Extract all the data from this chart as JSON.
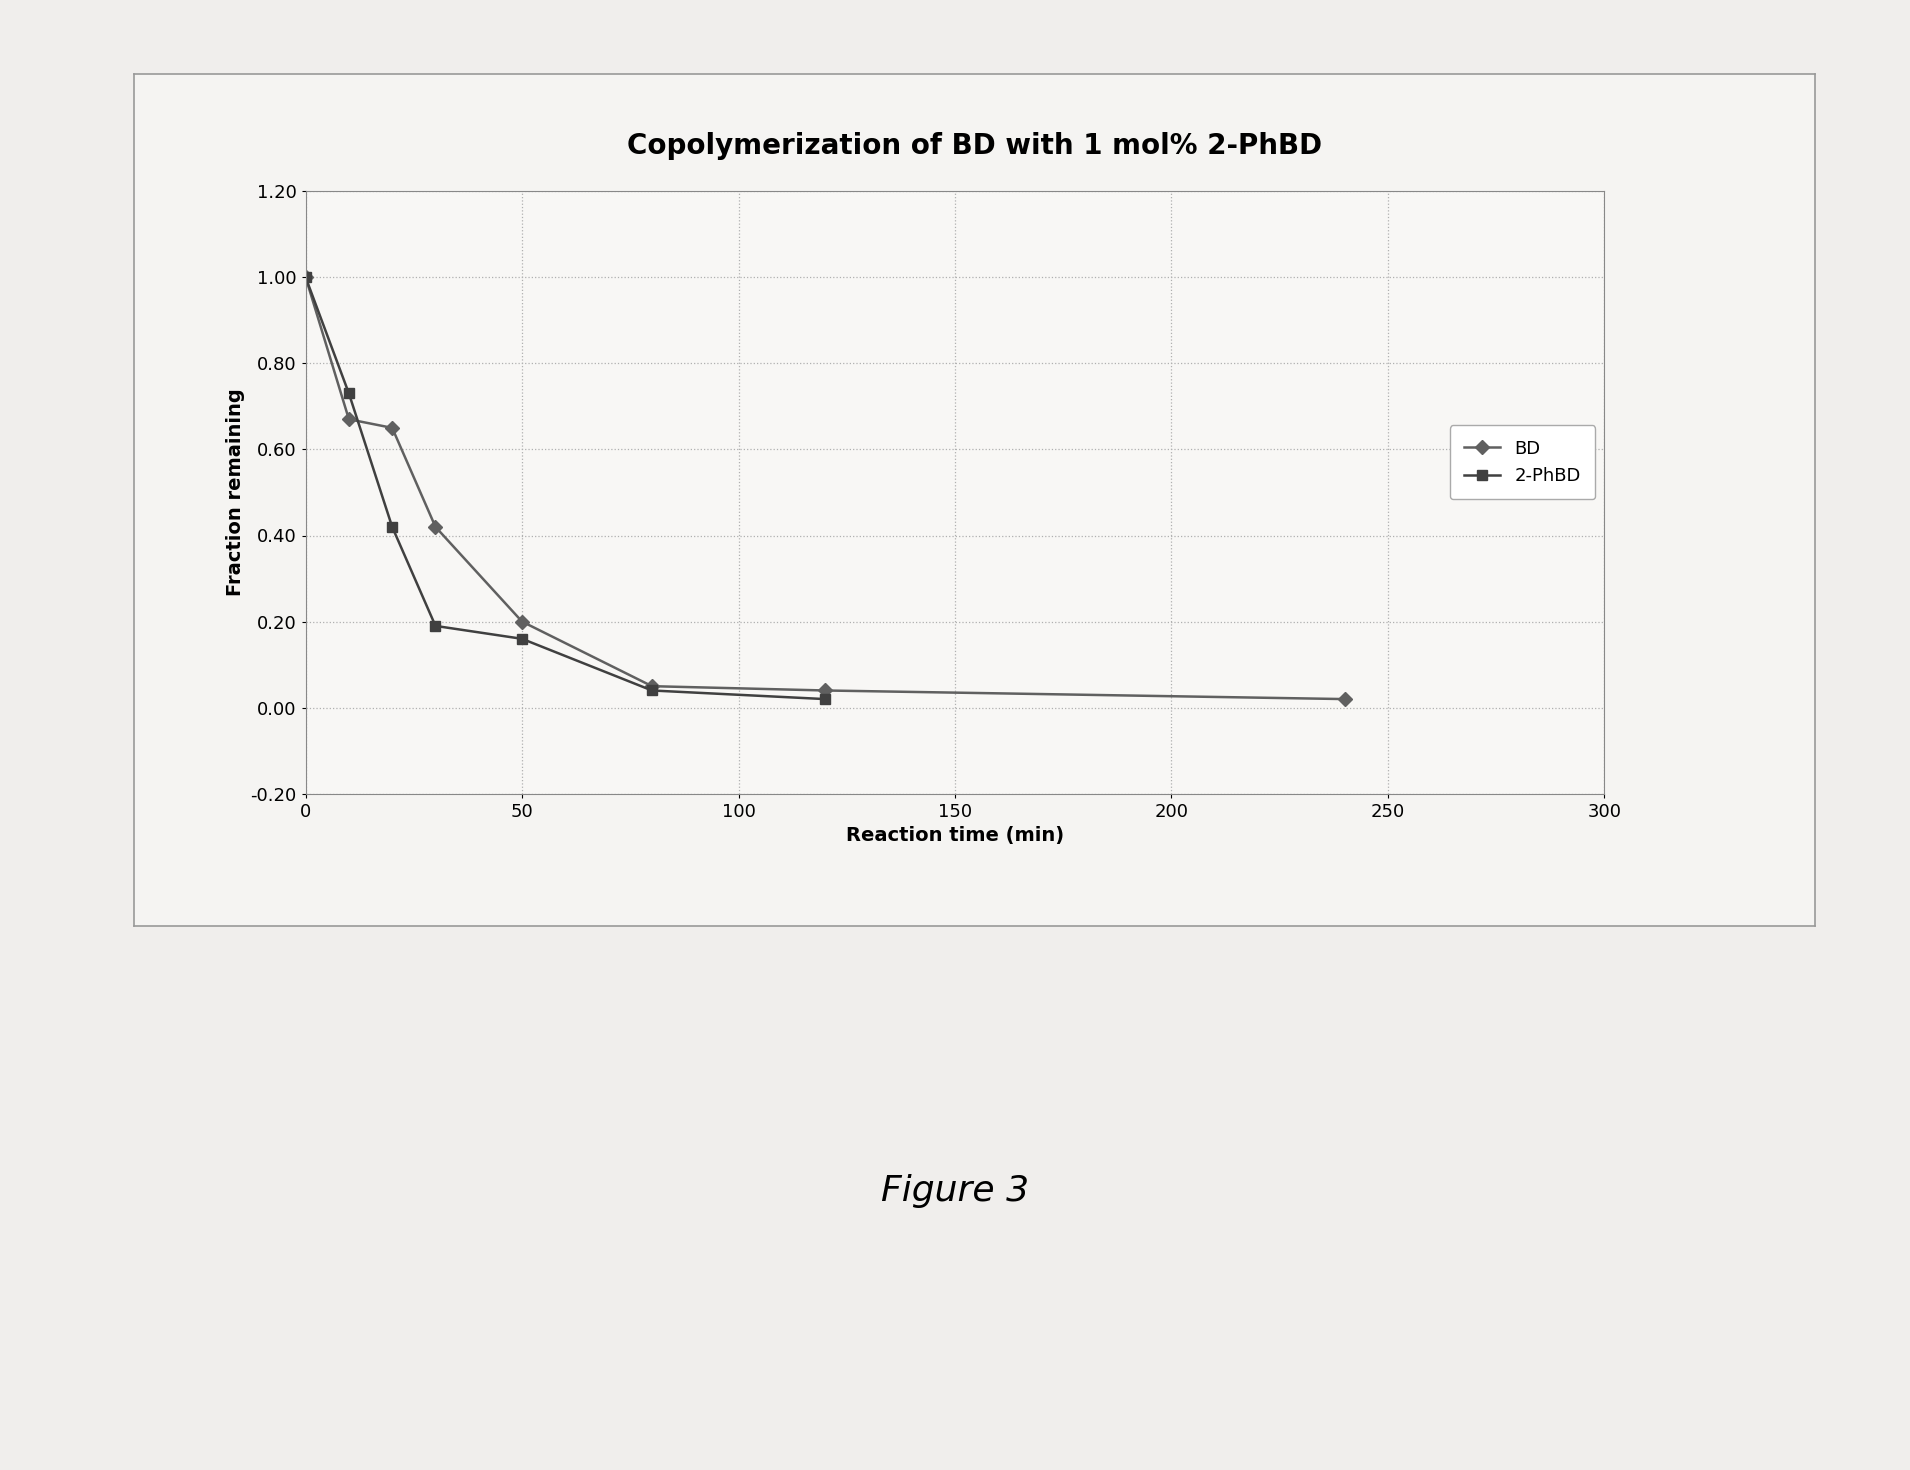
{
  "title": "Copolymerization of BD with 1 mol% 2-PhBD",
  "xlabel": "Reaction time (min)",
  "ylabel": "Fraction remaining",
  "figure_caption": "Figure 3",
  "xlim": [
    0,
    300
  ],
  "ylim": [
    -0.2,
    1.2
  ],
  "xticks": [
    0,
    50,
    100,
    150,
    200,
    250,
    300
  ],
  "yticks": [
    -0.2,
    0.0,
    0.2,
    0.4,
    0.6,
    0.8,
    1.0,
    1.2
  ],
  "BD": {
    "x": [
      0,
      10,
      20,
      30,
      50,
      80,
      120,
      240
    ],
    "y": [
      1.0,
      0.67,
      0.65,
      0.42,
      0.2,
      0.05,
      0.04,
      0.02
    ],
    "color": "#606060",
    "marker": "D",
    "markersize": 7,
    "label": "BD"
  },
  "PhBD": {
    "x": [
      0,
      10,
      20,
      30,
      50,
      80,
      120
    ],
    "y": [
      1.0,
      0.73,
      0.42,
      0.19,
      0.16,
      0.04,
      0.02
    ],
    "color": "#404040",
    "marker": "s",
    "markersize": 7,
    "label": "2-PhBD"
  },
  "page_bg_color": "#f0eeec",
  "chart_box_bg": "#f5f4f2",
  "plot_bg_color": "#f8f7f5",
  "grid_color": "#b0b0b0",
  "title_fontsize": 20,
  "label_fontsize": 14,
  "tick_fontsize": 13,
  "legend_fontsize": 13,
  "caption_fontsize": 26,
  "linewidth": 1.8
}
